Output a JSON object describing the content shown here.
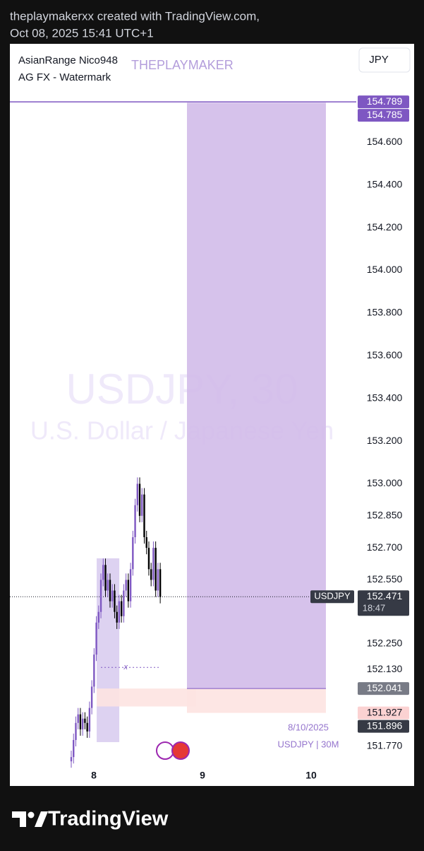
{
  "header": {
    "line1": "theplaymakerxx created with TradingView.com,",
    "line2": "Oct 08, 2025 15:41 UTC+1"
  },
  "legend": {
    "indicator1": "AsianRange Nico948",
    "indicator2": "AG FX - Watermark",
    "watermark_tag": "THEPLAYMAKER",
    "currency_button": "JPY"
  },
  "watermark": {
    "symbol": "USDJPY, 30",
    "description": "U.S. Dollar / Japanese Yen"
  },
  "chart_data": {
    "type": "candlestick",
    "x": [
      7.792,
      7.813,
      7.834,
      7.855,
      7.876,
      7.897,
      7.918,
      7.939,
      7.96,
      7.981,
      8.002,
      8.023,
      8.044,
      8.065,
      8.086,
      8.107,
      8.128,
      8.149,
      8.17,
      8.191,
      8.212,
      8.233,
      8.254,
      8.275,
      8.296,
      8.317,
      8.338,
      8.359,
      8.38,
      8.401,
      8.422,
      8.443,
      8.464,
      8.485,
      8.506,
      8.527,
      8.548,
      8.569,
      8.59,
      8.611
    ],
    "open": [
      151.7,
      151.72,
      151.8,
      151.88,
      151.92,
      151.85,
      151.9,
      151.88,
      151.84,
      151.95,
      152.05,
      152.2,
      152.35,
      152.4,
      152.55,
      152.62,
      152.5,
      152.55,
      152.45,
      152.5,
      152.4,
      152.35,
      152.45,
      152.38,
      152.5,
      152.55,
      152.45,
      152.6,
      152.75,
      152.9,
      153.0,
      152.85,
      152.95,
      152.75,
      152.7,
      152.6,
      152.55,
      152.7,
      152.5,
      152.6
    ],
    "high": [
      151.75,
      151.83,
      151.91,
      151.95,
      151.95,
      151.93,
      151.93,
      151.91,
      151.98,
      152.08,
      152.23,
      152.38,
      152.43,
      152.58,
      152.65,
      152.65,
      152.58,
      152.58,
      152.53,
      152.53,
      152.43,
      152.48,
      152.48,
      152.53,
      152.58,
      152.58,
      152.63,
      152.78,
      152.93,
      153.03,
      153.03,
      152.98,
      152.98,
      152.78,
      152.73,
      152.63,
      152.73,
      152.73,
      152.63,
      152.63
    ],
    "low": [
      151.67,
      151.69,
      151.77,
      151.85,
      151.82,
      151.82,
      151.85,
      151.81,
      151.81,
      151.92,
      152.02,
      152.17,
      152.32,
      152.37,
      152.52,
      152.47,
      152.47,
      152.42,
      152.42,
      152.37,
      152.32,
      152.32,
      152.35,
      152.35,
      152.47,
      152.42,
      152.42,
      152.57,
      152.72,
      152.87,
      152.82,
      152.82,
      152.72,
      152.67,
      152.57,
      152.52,
      152.52,
      152.47,
      152.47,
      152.44
    ],
    "close": [
      151.72,
      151.8,
      151.88,
      151.92,
      151.85,
      151.9,
      151.88,
      151.84,
      151.95,
      152.05,
      152.2,
      152.35,
      152.4,
      152.55,
      152.62,
      152.5,
      152.55,
      152.45,
      152.5,
      152.4,
      152.35,
      152.45,
      152.38,
      152.5,
      152.55,
      152.45,
      152.6,
      152.75,
      152.9,
      153.0,
      152.85,
      152.95,
      152.75,
      152.7,
      152.6,
      152.55,
      152.7,
      152.5,
      152.6,
      152.47
    ],
    "up_color": "#7e57c2",
    "down_color": "#000000",
    "xlim": [
      7.227,
      10.383
    ],
    "xticks": [
      8,
      9,
      10
    ],
    "ylim": [
      151.674,
      155.061
    ],
    "yticks": [
      {
        "value": 154.6,
        "label": "154.600"
      },
      {
        "value": 154.4,
        "label": "154.400"
      },
      {
        "value": 154.2,
        "label": "154.200"
      },
      {
        "value": 154,
        "label": "154.000"
      },
      {
        "value": 153.8,
        "label": "153.800"
      },
      {
        "value": 153.6,
        "label": "153.600"
      },
      {
        "value": 153.4,
        "label": "153.400"
      },
      {
        "value": 153.2,
        "label": "153.200"
      },
      {
        "value": 153,
        "label": "153.000"
      },
      {
        "value": 152.85,
        "label": "152.850"
      },
      {
        "value": 152.7,
        "label": "152.700"
      },
      {
        "value": 152.55,
        "label": "152.550"
      },
      {
        "value": 152.25,
        "label": "152.250"
      },
      {
        "value": 152.13,
        "label": "152.130"
      },
      {
        "value": 151.77,
        "label": "151.770"
      }
    ],
    "price_tags": [
      {
        "value": 154.789,
        "color": "#7e57c2"
      },
      {
        "value": 154.785,
        "color": "#7e57c2"
      },
      {
        "value": 152.471,
        "color": "#363a45",
        "symbol": "USDJPY",
        "countdown": "18:47"
      },
      {
        "value": 152.041,
        "color": "#787b86"
      },
      {
        "value": 151.927,
        "color": "#fbd2d2"
      },
      {
        "value": 151.896,
        "color": "#363a45"
      }
    ],
    "horizontal_line": 154.789,
    "target_zone": {
      "x": [
        8.857,
        10.136
      ],
      "top": 154.785,
      "bottom": 152.041,
      "color": "#d2bbe9"
    },
    "stop_zone": {
      "x": [
        8.857,
        10.136
      ],
      "top": 152.041,
      "bottom": 151.927,
      "color": "#fde3e1"
    },
    "asian_range": {
      "x": [
        8.026,
        8.234
      ],
      "top": 152.651,
      "bottom": 151.79,
      "color": "#d9cdf0"
    },
    "pink_level": {
      "x": [
        8.026,
        8.942
      ],
      "top": 152.041,
      "bottom": 151.957,
      "color": "#fde3e1"
    },
    "dotted_level": {
      "x": [
        8.065,
        8.617
      ],
      "value": 152.14,
      "marker": "x"
    },
    "annotation": {
      "date": "8/10/2025",
      "label": "USDJPY | 30M"
    }
  },
  "footer": {
    "brand": "TradingView"
  }
}
